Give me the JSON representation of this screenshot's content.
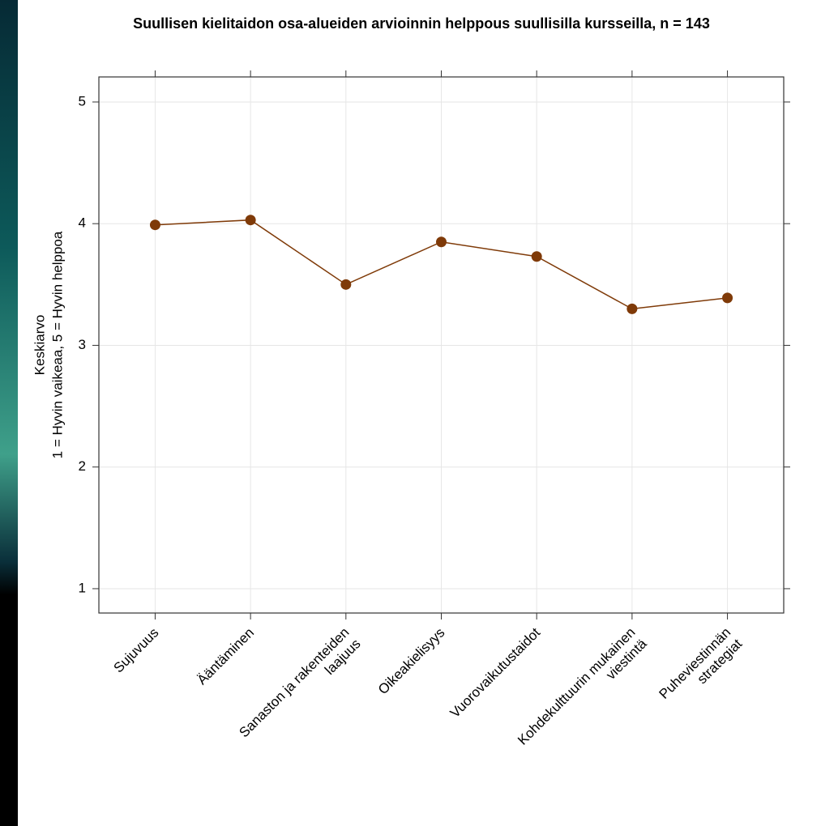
{
  "chart_data": {
    "type": "line",
    "title": "Suullisen kielitaidon osa-alueiden arvioinnin helppous suullisilla kursseilla, n = 143",
    "ylabel": [
      "Keskiarvo",
      "1 = Hyvin vaikeaa, 5 = Hyvin helppoa"
    ],
    "categories": [
      "Sujuvuus",
      "Ääntäminen",
      "Sanaston ja rakenteiden\nlaajuus",
      "Oikeakielisyys",
      "Vuorovaikutustaidot",
      "Kohdekulttuurin mukainen\nviestintä",
      "Puheviestinnän\nstrategiat"
    ],
    "series": [
      {
        "name": null,
        "color": "#7f3a08",
        "values": [
          3.99,
          4.03,
          3.5,
          3.85,
          3.73,
          3.3,
          3.39
        ]
      }
    ],
    "ylim": [
      0.8,
      5.206
    ],
    "yticks": [
      1,
      2,
      3,
      4,
      5
    ],
    "grid": true
  }
}
